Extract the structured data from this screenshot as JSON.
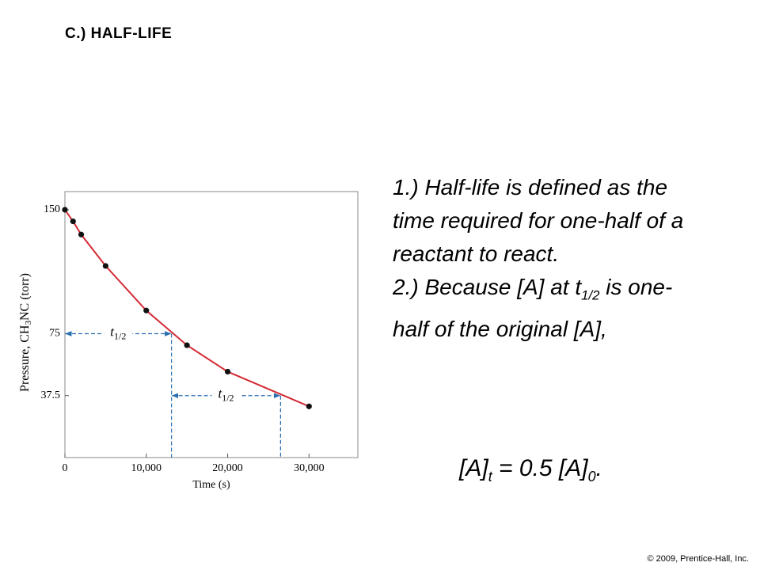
{
  "title": "C.) HALF-LIFE",
  "bullets": [
    {
      "parts": [
        "1.) Half-life is defined as the time required for one-half of a reactant to react."
      ]
    },
    {
      "parts": [
        "2.) Because [A] at t",
        "1/2",
        " is one-half of the original [A],"
      ]
    }
  ],
  "formula": [
    "[A]",
    "t",
    " = 0.5 [A]",
    "0",
    "."
  ],
  "footer": "© 2009, Prentice-Hall, Inc.",
  "chart_data": {
    "type": "line",
    "xlabel": "Time (s)",
    "ylabel": [
      "Pressure, CH",
      "3",
      "NC (torr)"
    ],
    "x": [
      0,
      1000,
      2000,
      5000,
      10000,
      15000,
      20000,
      30000
    ],
    "values": [
      150,
      143,
      135,
      116,
      89,
      68,
      52,
      31
    ],
    "line_color": "#d42a35",
    "marker_color": "#111111",
    "xlim": [
      0,
      36000
    ],
    "ylim": [
      0,
      161
    ],
    "xticks": [
      0,
      {
        "value": 10000,
        "label": "10,000"
      },
      {
        "value": 20000,
        "label": "20,000"
      },
      {
        "value": 30000,
        "label": "30,000"
      }
    ],
    "yticks": [
      150,
      75,
      37.5
    ],
    "half_life_marks": [
      {
        "from": 0,
        "to": 13100,
        "level": 75,
        "label": "t",
        "sub": "1/2"
      },
      {
        "from": 13100,
        "to": 26500,
        "level": 37.5,
        "label": "t",
        "sub": "1/2"
      }
    ],
    "mark_color": "#2a6fb0"
  }
}
